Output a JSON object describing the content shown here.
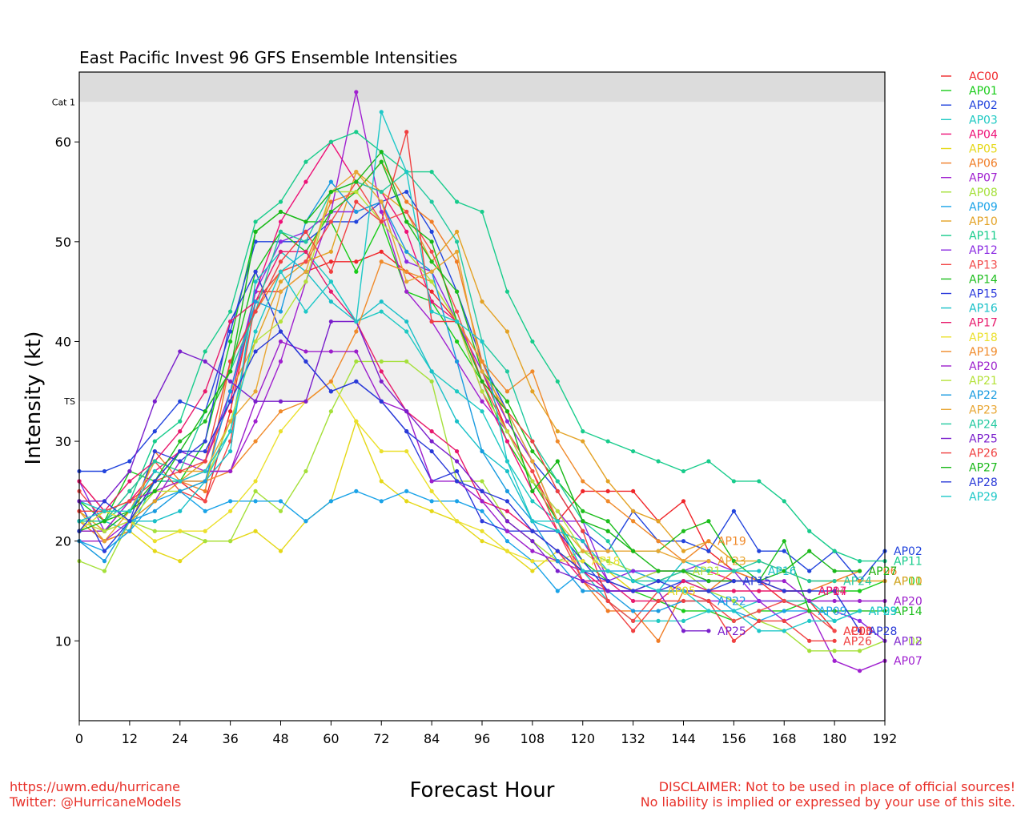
{
  "footer": {
    "link": "https://uwm.edu/hurricane",
    "twitter": "Twitter: @HurricaneModels",
    "disclaimer1": "DISCLAIMER: Not to be used in place of official sources!",
    "disclaimer2": "No liability is implied or expressed by your use of this site."
  },
  "chart_data": {
    "type": "line",
    "title": "East Pacific Invest 96 GFS Ensemble Intensities",
    "xlabel": "Forecast Hour",
    "ylabel": "Intensity (kt)",
    "xlim": [
      0,
      192
    ],
    "ylim": [
      2,
      67
    ],
    "xticks": [
      0,
      12,
      24,
      36,
      48,
      60,
      72,
      84,
      96,
      108,
      120,
      132,
      144,
      156,
      168,
      180,
      192
    ],
    "yticks": [
      10,
      20,
      30,
      40,
      50,
      60
    ],
    "bands": [
      {
        "label": "TS",
        "from": 34,
        "to": 64,
        "color": "#efefef"
      },
      {
        "label": "Cat 1",
        "from": 64,
        "to": 67,
        "color": "#dcdcdc"
      }
    ],
    "legend_position": "right",
    "grid": false,
    "x": [
      0,
      6,
      12,
      18,
      24,
      30,
      36,
      42,
      48,
      54,
      60,
      66,
      72,
      78,
      84,
      90,
      96,
      102,
      108,
      114,
      120,
      126,
      132,
      138,
      144,
      150,
      156,
      162,
      168,
      174,
      180,
      186,
      192
    ],
    "series": [
      {
        "name": "AC00",
        "color": "#f0262a",
        "values": [
          26,
          23,
          22,
          26,
          26,
          24,
          33,
          45,
          45,
          47,
          48,
          48,
          49,
          47,
          45,
          42,
          37,
          31,
          27,
          22,
          25,
          25,
          25,
          22,
          24,
          19,
          17,
          16,
          14,
          14,
          11,
          null,
          null
        ]
      },
      {
        "name": "AP01",
        "color": "#19cc19",
        "values": [
          24,
          22,
          27,
          26,
          26,
          30,
          40,
          51,
          53,
          52,
          52,
          47,
          52,
          45,
          44,
          40,
          36,
          30,
          26,
          22,
          18,
          16,
          15,
          14,
          13,
          13,
          12,
          13,
          13,
          14,
          15,
          15,
          16
        ]
      },
      {
        "name": "AP02",
        "color": "#2244dd",
        "values": [
          27,
          27,
          28,
          31,
          34,
          33,
          41,
          50,
          50,
          50,
          52,
          52,
          54,
          55,
          51,
          45,
          38,
          33,
          28,
          25,
          21,
          19,
          23,
          20,
          20,
          19,
          23,
          19,
          19,
          17,
          19,
          16,
          19
        ]
      },
      {
        "name": "AP03",
        "color": "#1fc9c3",
        "values": [
          22,
          22,
          21,
          26,
          26,
          26,
          31,
          44,
          47,
          49,
          46,
          42,
          43,
          41,
          37,
          35,
          33,
          28,
          24,
          22,
          17,
          14,
          12,
          12,
          12,
          13,
          13,
          14,
          14,
          14,
          12,
          13,
          null
        ]
      },
      {
        "name": "AP04",
        "color": "#ee1177",
        "values": [
          21,
          21,
          24,
          27,
          29,
          28,
          34,
          45,
          52,
          56,
          60,
          56,
          55,
          51,
          44,
          42,
          35,
          30,
          25,
          21,
          17,
          15,
          15,
          16,
          17,
          17,
          16,
          16,
          15,
          15,
          null,
          null,
          null
        ]
      },
      {
        "name": "AP05",
        "color": "#e5d817",
        "values": [
          20,
          20,
          21,
          19,
          18,
          20,
          20,
          21,
          19,
          22,
          24,
          32,
          26,
          24,
          23,
          22,
          20,
          19,
          17,
          19,
          17,
          17,
          15,
          15,
          null,
          null,
          null,
          null,
          null,
          null,
          null,
          null,
          null
        ]
      },
      {
        "name": "AP06",
        "color": "#f07c25",
        "values": [
          22,
          20,
          21,
          29,
          26,
          25,
          38,
          43,
          47,
          48,
          54,
          55,
          58,
          54,
          52,
          48,
          38,
          32,
          28,
          22,
          16,
          13,
          13,
          10,
          15,
          15,
          17,
          16,
          15,
          15,
          16,
          17,
          null
        ]
      },
      {
        "name": "AP07",
        "color": "#a020d0",
        "values": [
          20,
          20,
          22,
          24,
          28,
          27,
          27,
          32,
          38,
          46,
          53,
          65,
          53,
          45,
          42,
          38,
          34,
          31,
          26,
          23,
          20,
          16,
          15,
          15,
          15,
          14,
          14,
          14,
          12,
          13,
          8,
          7,
          8
        ]
      },
      {
        "name": "AP08",
        "color": "#a5e03a",
        "values": [
          18,
          17,
          22,
          21,
          21,
          20,
          20,
          25,
          23,
          27,
          33,
          38,
          38,
          38,
          36,
          26,
          26,
          22,
          20,
          18,
          19,
          18,
          17,
          16,
          17,
          15,
          14,
          12,
          11,
          9,
          9,
          9,
          10
        ]
      },
      {
        "name": "AP09",
        "color": "#1aa3e8",
        "values": [
          20,
          19,
          21,
          24,
          25,
          23,
          24,
          24,
          24,
          22,
          24,
          25,
          24,
          25,
          24,
          24,
          23,
          20,
          18,
          15,
          17,
          17,
          17,
          16,
          16,
          15,
          13,
          12,
          13,
          13,
          null,
          null,
          null
        ]
      },
      {
        "name": "AP10",
        "color": "#e3a225",
        "values": [
          23,
          21,
          22,
          24,
          26,
          28,
          35,
          40,
          46,
          48,
          49,
          57,
          55,
          53,
          48,
          51,
          44,
          41,
          35,
          31,
          30,
          26,
          23,
          22,
          19,
          20,
          18,
          18,
          17,
          16,
          16,
          16,
          16
        ]
      },
      {
        "name": "AP11",
        "color": "#18cc8c",
        "values": [
          22,
          22,
          24,
          30,
          32,
          39,
          43,
          52,
          54,
          58,
          60,
          61,
          59,
          57,
          57,
          54,
          53,
          45,
          40,
          36,
          31,
          30,
          29,
          28,
          27,
          28,
          26,
          26,
          24,
          21,
          19,
          18,
          18
        ]
      },
      {
        "name": "AP12",
        "color": "#8a2be2",
        "values": [
          26,
          21,
          23,
          26,
          29,
          28,
          35,
          45,
          50,
          51,
          53,
          53,
          54,
          48,
          47,
          42,
          37,
          32,
          28,
          22,
          22,
          16,
          17,
          17,
          17,
          18,
          17,
          14,
          14,
          13,
          13,
          12,
          10
        ]
      },
      {
        "name": "AP13",
        "color": "#f24a4a",
        "values": [
          25,
          22,
          25,
          28,
          25,
          24,
          30,
          44,
          47,
          48,
          52,
          56,
          52,
          53,
          49,
          43,
          36,
          31,
          27,
          21,
          16,
          14,
          12,
          15,
          15,
          14,
          12,
          13,
          14,
          13,
          11,
          null,
          null
        ]
      },
      {
        "name": "AP14",
        "color": "#1ebe1e",
        "values": [
          21,
          21,
          23,
          26,
          30,
          32,
          37,
          47,
          51,
          49,
          53,
          55,
          58,
          52,
          48,
          45,
          37,
          34,
          29,
          26,
          23,
          22,
          19,
          19,
          21,
          22,
          18,
          16,
          20,
          13,
          13,
          13,
          13
        ]
      },
      {
        "name": "AP15",
        "color": "#2d3bdc",
        "values": [
          24,
          19,
          22,
          29,
          28,
          30,
          42,
          47,
          41,
          38,
          35,
          36,
          34,
          31,
          26,
          27,
          22,
          21,
          21,
          21,
          18,
          15,
          15,
          15,
          16,
          16,
          16,
          null,
          null,
          null,
          null,
          null,
          null
        ]
      },
      {
        "name": "AP16",
        "color": "#19c0c8",
        "values": [
          24,
          23,
          22,
          22,
          23,
          26,
          29,
          46,
          49,
          47,
          44,
          42,
          44,
          42,
          37,
          32,
          29,
          27,
          22,
          21,
          20,
          17,
          16,
          15,
          18,
          17,
          17,
          17,
          null,
          null,
          null,
          null,
          null
        ]
      },
      {
        "name": "AP17",
        "color": "#e81a6c",
        "values": [
          26,
          23,
          26,
          28,
          31,
          35,
          42,
          44,
          49,
          49,
          45,
          42,
          37,
          33,
          31,
          29,
          24,
          23,
          21,
          19,
          16,
          16,
          14,
          14,
          16,
          15,
          15,
          15,
          15,
          15,
          null,
          null,
          null
        ]
      },
      {
        "name": "AP18",
        "color": "#ebe02c",
        "values": [
          21,
          23,
          22,
          20,
          21,
          21,
          23,
          26,
          31,
          34,
          36,
          32,
          29,
          29,
          25,
          22,
          21,
          19,
          18,
          18,
          18,
          null,
          null,
          null,
          null,
          null,
          null,
          null,
          null,
          null,
          null,
          null,
          null
        ]
      },
      {
        "name": "AP19",
        "color": "#f08a2a",
        "values": [
          22,
          23,
          24,
          25,
          26,
          26,
          27,
          30,
          33,
          34,
          36,
          41,
          48,
          47,
          46,
          42,
          38,
          35,
          37,
          30,
          26,
          24,
          22,
          20,
          18,
          20,
          null,
          null,
          null,
          null,
          null,
          null,
          null
        ]
      },
      {
        "name": "AP20",
        "color": "#9c1fcc",
        "values": [
          21,
          21,
          24,
          25,
          26,
          27,
          27,
          34,
          40,
          39,
          39,
          39,
          34,
          33,
          26,
          26,
          24,
          21,
          19,
          18,
          17,
          17,
          16,
          17,
          17,
          16,
          16,
          16,
          16,
          14,
          14,
          14,
          14
        ]
      },
      {
        "name": "AP21",
        "color": "#b5e23a",
        "values": [
          22,
          21,
          22,
          25,
          25,
          26,
          32,
          40,
          42,
          46,
          55,
          55,
          52,
          49,
          46,
          42,
          35,
          31,
          26,
          23,
          19,
          17,
          16,
          17,
          17,
          null,
          null,
          null,
          null,
          null,
          null,
          null,
          null
        ]
      },
      {
        "name": "AP22",
        "color": "#199be0",
        "values": [
          20,
          18,
          22,
          23,
          25,
          26,
          35,
          44,
          43,
          52,
          56,
          53,
          54,
          49,
          47,
          38,
          29,
          25,
          22,
          18,
          15,
          15,
          13,
          13,
          14,
          14,
          null,
          null,
          null,
          null,
          null,
          null,
          null
        ]
      },
      {
        "name": "AP23",
        "color": "#e8a633",
        "values": [
          23,
          20,
          23,
          28,
          27,
          27,
          32,
          35,
          45,
          47,
          55,
          57,
          54,
          46,
          47,
          49,
          37,
          33,
          28,
          22,
          19,
          19,
          19,
          19,
          18,
          18,
          null,
          null,
          null,
          null,
          null,
          null,
          null
        ]
      },
      {
        "name": "AP24",
        "color": "#22c9a0",
        "values": [
          22,
          22,
          25,
          28,
          27,
          33,
          37,
          43,
          51,
          50,
          55,
          56,
          55,
          57,
          54,
          50,
          40,
          37,
          30,
          26,
          22,
          20,
          16,
          16,
          17,
          17,
          17,
          18,
          17,
          16,
          16,
          null,
          null
        ]
      },
      {
        "name": "AP25",
        "color": "#7a1fcc",
        "values": [
          24,
          24,
          27,
          34,
          39,
          38,
          36,
          34,
          34,
          34,
          42,
          42,
          36,
          33,
          30,
          28,
          25,
          22,
          20,
          17,
          16,
          15,
          15,
          15,
          11,
          11,
          null,
          null,
          null,
          null,
          null,
          null,
          null
        ]
      },
      {
        "name": "AP26",
        "color": "#f04040",
        "values": [
          23,
          23,
          24,
          26,
          27,
          28,
          38,
          43,
          48,
          51,
          47,
          54,
          52,
          61,
          42,
          42,
          36,
          33,
          30,
          25,
          21,
          14,
          11,
          14,
          14,
          14,
          10,
          12,
          12,
          10,
          10,
          null,
          null
        ]
      },
      {
        "name": "AP27",
        "color": "#18b818",
        "values": [
          21,
          22,
          23,
          25,
          29,
          33,
          37,
          51,
          53,
          52,
          55,
          56,
          59,
          52,
          50,
          42,
          36,
          33,
          25,
          28,
          22,
          21,
          19,
          17,
          17,
          16,
          16,
          16,
          17,
          19,
          17,
          17,
          null
        ]
      },
      {
        "name": "AP28",
        "color": "#2a3ad8",
        "values": [
          21,
          24,
          22,
          26,
          29,
          29,
          34,
          39,
          41,
          38,
          35,
          36,
          34,
          31,
          29,
          26,
          25,
          24,
          21,
          19,
          17,
          16,
          15,
          16,
          15,
          15,
          16,
          16,
          15,
          15,
          15,
          11,
          null
        ]
      },
      {
        "name": "AP29",
        "color": "#1ec8c8",
        "values": [
          22,
          23,
          23,
          27,
          26,
          27,
          31,
          41,
          47,
          43,
          46,
          42,
          63,
          57,
          43,
          42,
          40,
          28,
          22,
          22,
          17,
          17,
          16,
          15,
          15,
          13,
          13,
          11,
          11,
          12,
          12,
          13,
          null
        ]
      }
    ]
  }
}
